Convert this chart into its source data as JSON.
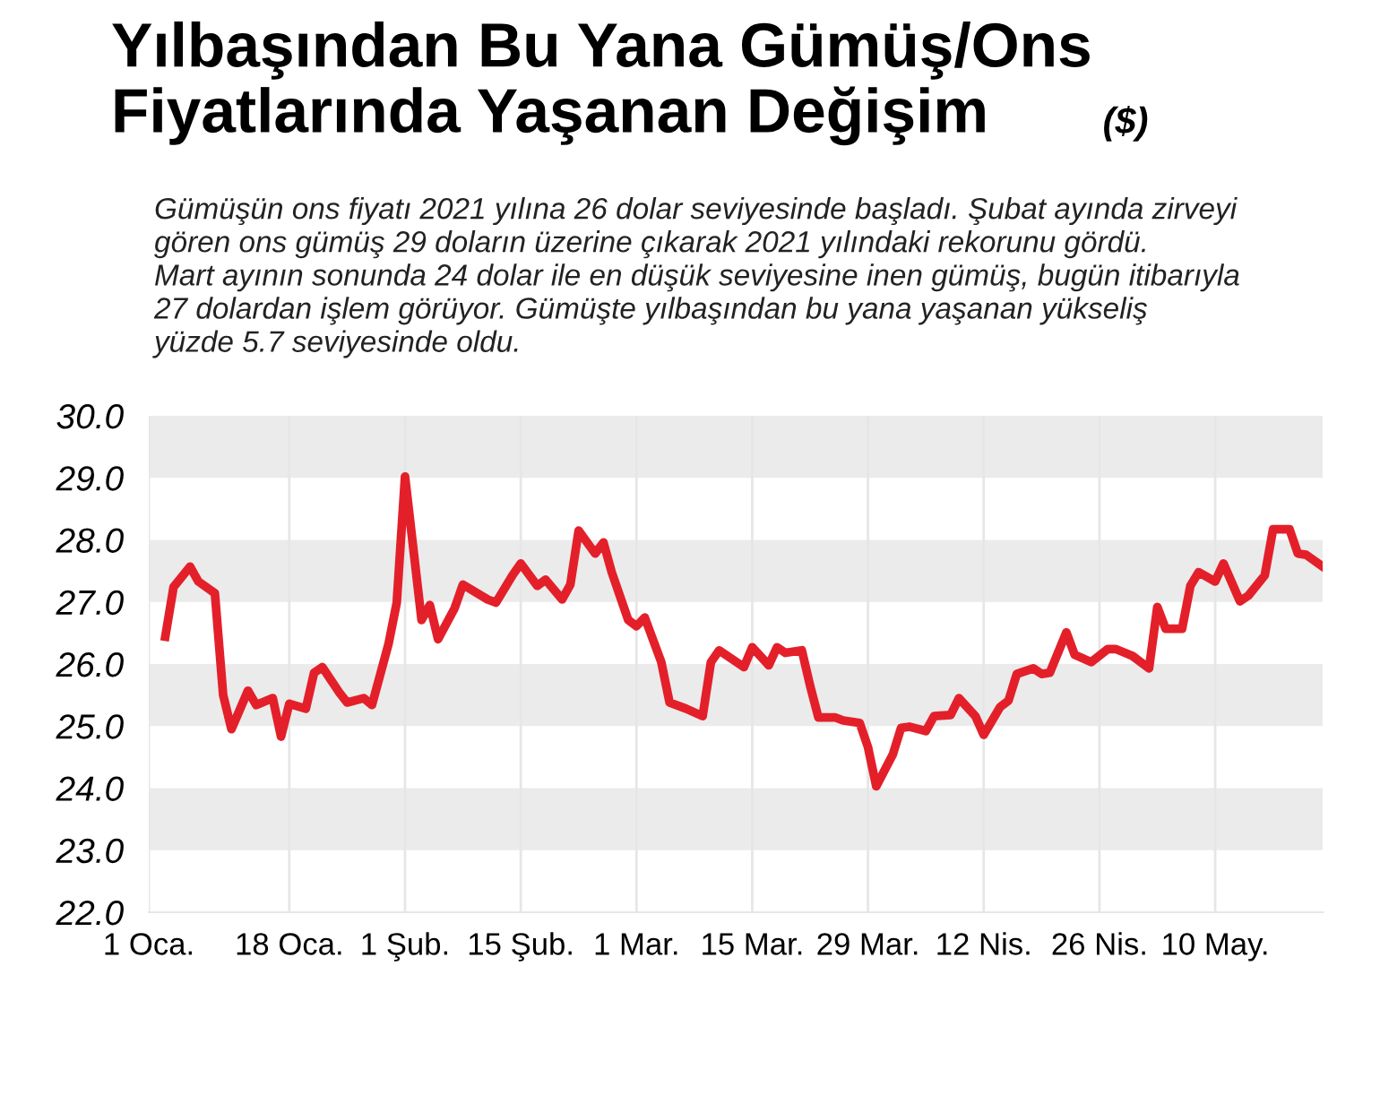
{
  "chart_data": {
    "type": "line",
    "title": "Yılbaşından Bu Yana Gümüş/Ons\nFiyatlarında Yaşanan Değişim",
    "subtitle": "Gümüşün ons fiyatı 2021 yılına 26 dolar seviyesinde başladı. Şubat ayında zirveyi\ngören ons gümüş 29 doların üzerine çıkarak 2021 yılındaki rekorunu gördü.\nMart ayının sonunda 24 dolar ile en düşük seviyesine inen gümüş, bugün itibarıyla\n27 dolardan işlem görüyor. Gümüşte yılbaşından bu yana yaşanan yükseliş\nyüzde 5.7 seviyesinde oldu.",
    "annotations": [
      "($)"
    ],
    "x": [
      "2021-01-03",
      "2021-01-04",
      "2021-01-06",
      "2021-01-07",
      "2021-01-09",
      "2021-01-10",
      "2021-01-11",
      "2021-01-13",
      "2021-01-14",
      "2021-01-16",
      "2021-01-17",
      "2021-01-18",
      "2021-01-20",
      "2021-01-21",
      "2021-01-22",
      "2021-01-24",
      "2021-01-25",
      "2021-01-27",
      "2021-01-28",
      "2021-01-30",
      "2021-01-31",
      "2021-02-01",
      "2021-02-03",
      "2021-02-04",
      "2021-02-05",
      "2021-02-07",
      "2021-02-08",
      "2021-02-11",
      "2021-02-12",
      "2021-02-14",
      "2021-02-15",
      "2021-02-17",
      "2021-02-18",
      "2021-02-20",
      "2021-02-21",
      "2021-02-22",
      "2021-02-24",
      "2021-02-25",
      "2021-02-26",
      "2021-02-28",
      "2021-03-01",
      "2021-03-02",
      "2021-03-04",
      "2021-03-05",
      "2021-03-07",
      "2021-03-09",
      "2021-03-10",
      "2021-03-11",
      "2021-03-12",
      "2021-03-14",
      "2021-03-15",
      "2021-03-17",
      "2021-03-18",
      "2021-03-19",
      "2021-03-21",
      "2021-03-22",
      "2021-03-23",
      "2021-03-25",
      "2021-03-26",
      "2021-03-28",
      "2021-03-29",
      "2021-03-30",
      "2021-04-01",
      "2021-04-02",
      "2021-04-03",
      "2021-04-05",
      "2021-04-06",
      "2021-04-08",
      "2021-04-09",
      "2021-04-11",
      "2021-04-12",
      "2021-04-14",
      "2021-04-15",
      "2021-04-16",
      "2021-04-18",
      "2021-04-19",
      "2021-04-20",
      "2021-04-22",
      "2021-04-23",
      "2021-04-25",
      "2021-04-27",
      "2021-04-28",
      "2021-04-30",
      "2021-05-02",
      "2021-05-03",
      "2021-05-04",
      "2021-05-06",
      "2021-05-07",
      "2021-05-08",
      "2021-05-10",
      "2021-05-11",
      "2021-05-13",
      "2021-05-14",
      "2021-05-16",
      "2021-05-17",
      "2021-05-19",
      "2021-05-20",
      "2021-05-21",
      "2021-05-23"
    ],
    "series": [
      {
        "color": "#e3202a",
        "values": [
          26.44,
          27.24,
          27.57,
          27.33,
          27.14,
          25.5,
          24.95,
          25.57,
          25.34,
          25.45,
          24.83,
          25.36,
          25.28,
          25.86,
          25.95,
          25.55,
          25.38,
          25.45,
          25.34,
          26.32,
          26.99,
          29.02,
          26.71,
          26.95,
          26.4,
          26.9,
          27.28,
          27.04,
          26.99,
          27.43,
          27.62,
          27.26,
          27.36,
          27.04,
          27.28,
          28.15,
          27.78,
          27.96,
          27.48,
          26.71,
          26.61,
          26.75,
          26.03,
          25.38,
          25.28,
          25.16,
          26.03,
          26.22,
          26.13,
          25.95,
          26.27,
          25.98,
          26.27,
          26.18,
          26.22,
          25.65,
          25.14,
          25.14,
          25.09,
          25.05,
          24.66,
          24.03,
          24.54,
          24.97,
          24.99,
          24.92,
          25.16,
          25.18,
          25.45,
          25.16,
          24.86,
          25.31,
          25.41,
          25.84,
          25.93,
          25.84,
          25.86,
          26.51,
          26.15,
          26.03,
          26.24,
          26.24,
          26.13,
          25.93,
          26.92,
          26.57,
          26.57,
          27.26,
          27.48,
          27.33,
          27.62,
          27.01,
          27.1,
          27.43,
          28.17,
          28.17,
          27.78,
          27.76,
          27.57
        ]
      }
    ],
    "xlim": [
      "2021-01-01",
      "2021-05-23"
    ],
    "xticks": [
      {
        "value": "2021-01-01",
        "label": "1 Oca."
      },
      {
        "value": "2021-01-18",
        "label": "18 Oca."
      },
      {
        "value": "2021-02-01",
        "label": "1 Şub."
      },
      {
        "value": "2021-02-15",
        "label": "15 Şub."
      },
      {
        "value": "2021-03-01",
        "label": "1 Mar."
      },
      {
        "value": "2021-03-15",
        "label": "15 Mar."
      },
      {
        "value": "2021-03-29",
        "label": "29 Mar."
      },
      {
        "value": "2021-04-12",
        "label": "12 Nis."
      },
      {
        "value": "2021-04-26",
        "label": "26 Nis."
      },
      {
        "value": "2021-05-10",
        "label": "10 May."
      }
    ],
    "ylim": [
      22,
      30
    ],
    "yticks": [
      {
        "value": 22,
        "label": "22.0"
      },
      {
        "value": 23,
        "label": "23.0"
      },
      {
        "value": 24,
        "label": "24.0"
      },
      {
        "value": 25,
        "label": "25.0"
      },
      {
        "value": 26,
        "label": "26.0"
      },
      {
        "value": 27,
        "label": "27.0"
      },
      {
        "value": 28,
        "label": "28.0"
      },
      {
        "value": 29,
        "label": "29.0"
      },
      {
        "value": 30,
        "label": "30.0"
      }
    ],
    "bands": [
      {
        "axis": "y",
        "from": 23,
        "to": 24,
        "color": "#ebebeb"
      },
      {
        "axis": "y",
        "from": 25,
        "to": 26,
        "color": "#ebebeb"
      },
      {
        "axis": "y",
        "from": 27,
        "to": 28,
        "color": "#ebebeb"
      },
      {
        "axis": "y",
        "from": 29,
        "to": 30,
        "color": "#ebebeb"
      }
    ],
    "grid": "x",
    "legend": false,
    "marker": "none",
    "line_style": "solid"
  }
}
